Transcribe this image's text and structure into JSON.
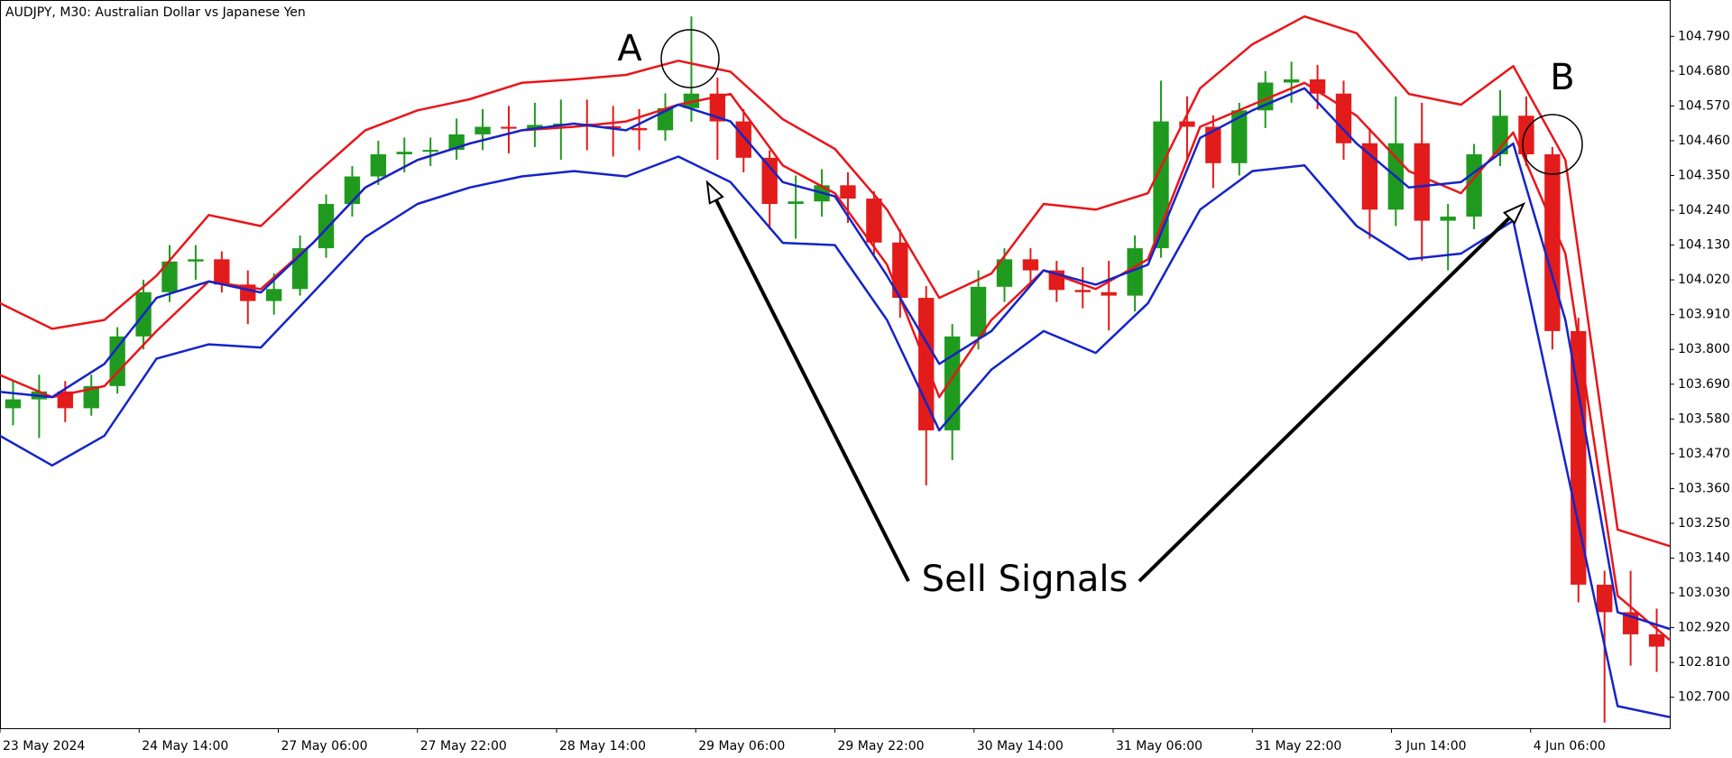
{
  "chart_data": {
    "type": "candlestick",
    "title": "AUDJPY, M30:  Australian Dollar vs Japanese Yen",
    "up_color": "#1f9a1f",
    "down_color": "#e21b1b",
    "x": [
      3,
      9,
      15,
      21,
      27,
      33,
      39,
      45,
      51,
      57,
      63,
      69,
      75,
      81,
      87,
      93,
      99,
      105,
      111,
      117,
      123,
      129,
      135,
      141,
      147,
      153,
      159,
      165,
      171,
      177,
      183,
      189,
      195,
      201,
      207,
      213,
      219,
      225,
      231,
      237,
      243,
      249,
      255,
      261,
      267,
      273,
      279,
      285,
      291,
      297,
      303,
      309,
      315,
      321,
      327,
      333,
      339,
      345,
      351,
      357,
      363,
      369,
      375,
      381
    ],
    "open": [
      103.614,
      103.642,
      103.667,
      103.614,
      103.684,
      103.841,
      103.981,
      104.078,
      104.085,
      104.005,
      103.953,
      103.991,
      104.12,
      104.26,
      104.347,
      104.417,
      104.425,
      104.431,
      104.48,
      104.504,
      104.498,
      104.51,
      104.514,
      104.506,
      104.5,
      104.493,
      104.563,
      104.609,
      104.521,
      104.406,
      104.26,
      104.268,
      104.319,
      104.277,
      104.138,
      103.963,
      103.544,
      103.841,
      103.998,
      104.085,
      104.05,
      103.988,
      103.981,
      103.97,
      104.12,
      104.521,
      104.504,
      104.389,
      104.556,
      104.644,
      104.654,
      104.609,
      104.452,
      104.242,
      104.452,
      104.207,
      104.22,
      104.417,
      104.539,
      104.417,
      103.858,
      103.056,
      102.969,
      102.899
    ],
    "high": [
      103.7,
      103.72,
      103.7,
      103.72,
      103.87,
      104.02,
      104.13,
      104.13,
      104.11,
      104.05,
      104.04,
      104.16,
      104.29,
      104.38,
      104.46,
      104.47,
      104.47,
      104.53,
      104.56,
      104.57,
      104.58,
      104.59,
      104.59,
      104.57,
      104.56,
      104.61,
      104.853,
      104.66,
      104.56,
      104.43,
      104.35,
      104.37,
      104.36,
      104.3,
      104.18,
      104.0,
      103.88,
      104.05,
      104.12,
      104.12,
      104.08,
      104.06,
      104.08,
      104.16,
      104.65,
      104.6,
      104.54,
      104.58,
      104.68,
      104.71,
      104.7,
      104.65,
      104.5,
      104.6,
      104.58,
      104.26,
      104.45,
      104.62,
      104.6,
      104.44,
      103.9,
      103.1,
      103.1,
      102.98
    ],
    "low": [
      103.56,
      103.52,
      103.57,
      103.59,
      103.66,
      103.8,
      103.95,
      104.02,
      103.98,
      103.88,
      103.91,
      103.97,
      104.09,
      104.22,
      104.32,
      104.36,
      104.38,
      104.4,
      104.43,
      104.42,
      104.44,
      104.4,
      104.43,
      104.41,
      104.43,
      104.46,
      104.52,
      104.4,
      104.36,
      104.18,
      104.15,
      104.22,
      104.2,
      104.1,
      103.9,
      103.37,
      103.45,
      103.8,
      103.95,
      104.0,
      103.95,
      103.93,
      103.86,
      103.92,
      104.09,
      104.4,
      104.31,
      104.35,
      104.5,
      104.58,
      104.56,
      104.4,
      104.15,
      104.19,
      104.08,
      104.05,
      104.18,
      104.38,
      104.38,
      103.8,
      103.0,
      102.62,
      102.8,
      102.78
    ],
    "close": [
      103.642,
      103.667,
      103.614,
      103.684,
      103.841,
      103.981,
      104.078,
      104.085,
      104.005,
      103.953,
      103.991,
      104.12,
      104.26,
      104.347,
      104.417,
      104.425,
      104.431,
      104.48,
      104.504,
      104.498,
      104.51,
      104.514,
      104.506,
      104.5,
      104.493,
      104.563,
      104.609,
      104.521,
      104.406,
      104.26,
      104.268,
      104.319,
      104.277,
      104.138,
      103.963,
      103.544,
      103.841,
      103.998,
      104.085,
      104.05,
      103.988,
      103.981,
      103.97,
      104.12,
      104.521,
      104.504,
      104.389,
      104.556,
      104.644,
      104.654,
      104.609,
      104.452,
      104.242,
      104.452,
      104.207,
      104.22,
      104.417,
      104.539,
      104.417,
      103.858,
      103.056,
      102.969,
      102.899,
      102.86
    ],
    "lines": {
      "x": [
        0,
        12,
        24,
        36,
        48,
        60,
        72,
        84,
        96,
        108,
        120,
        132,
        144,
        156,
        168,
        180,
        192,
        204,
        216,
        228,
        240,
        252,
        264,
        276,
        288,
        300,
        312,
        324,
        336,
        348,
        360,
        372,
        384
      ],
      "series": [
        {
          "color": "#e8161a",
          "values": [
            103.946,
            103.865,
            103.893,
            104.033,
            104.225,
            104.19,
            104.347,
            104.493,
            104.556,
            104.591,
            104.643,
            104.654,
            104.668,
            104.713,
            104.678,
            104.528,
            104.434,
            104.242,
            103.963,
            104.04,
            104.26,
            104.242,
            104.294,
            104.626,
            104.765,
            104.853,
            104.8,
            104.608,
            104.574,
            104.696,
            104.399,
            103.23,
            103.178
          ]
        },
        {
          "color": "#e8161a",
          "values": [
            103.719,
            103.649,
            103.684,
            103.858,
            104.015,
            103.991,
            104.137,
            104.312,
            104.399,
            104.451,
            104.493,
            104.504,
            104.521,
            104.574,
            104.608,
            104.382,
            104.294,
            104.068,
            103.649,
            103.893,
            104.05,
            103.991,
            104.085,
            104.504,
            104.574,
            104.643,
            104.539,
            104.364,
            104.294,
            104.486,
            104.103,
            103.021,
            102.881
          ]
        },
        {
          "color": "#1424c8",
          "values": [
            103.666,
            103.649,
            103.754,
            103.963,
            104.015,
            103.98,
            104.137,
            104.312,
            104.399,
            104.451,
            104.493,
            104.514,
            104.493,
            104.574,
            104.521,
            104.329,
            104.284,
            104.033,
            103.754,
            103.858,
            104.05,
            104.005,
            104.068,
            104.469,
            104.556,
            104.626,
            104.451,
            104.312,
            104.329,
            104.451,
            103.893,
            102.969,
            102.916
          ]
        },
        {
          "color": "#1424c8",
          "values": [
            103.527,
            103.433,
            103.527,
            103.771,
            103.816,
            103.806,
            103.98,
            104.155,
            104.26,
            104.312,
            104.347,
            104.364,
            104.347,
            104.41,
            104.329,
            104.137,
            104.13,
            103.893,
            103.544,
            103.736,
            103.858,
            103.789,
            103.946,
            104.242,
            104.364,
            104.382,
            104.19,
            104.085,
            104.103,
            104.207,
            103.44,
            102.672,
            102.637
          ]
        }
      ]
    },
    "xlim": [
      0,
      384
    ],
    "ylim": [
      102.602,
      104.905
    ],
    "xticks": [
      {
        "value": 0,
        "label": "23 May 2024"
      },
      {
        "value": 32,
        "label": "24 May 14:00"
      },
      {
        "value": 64,
        "label": "27 May 06:00"
      },
      {
        "value": 96,
        "label": "27 May 22:00"
      },
      {
        "value": 128,
        "label": "28 May 14:00"
      },
      {
        "value": 160,
        "label": "29 May 06:00"
      },
      {
        "value": 192,
        "label": "29 May 22:00"
      },
      {
        "value": 224,
        "label": "30 May 14:00"
      },
      {
        "value": 256,
        "label": "31 May 06:00"
      },
      {
        "value": 288,
        "label": "31 May 22:00"
      },
      {
        "value": 320,
        "label": "3 Jun 14:00"
      },
      {
        "value": 352,
        "label": "4 Jun 06:00"
      }
    ],
    "yticks": [
      {
        "value": 104.79,
        "label": "104.790"
      },
      {
        "value": 104.68,
        "label": "104.680"
      },
      {
        "value": 104.57,
        "label": "104.570"
      },
      {
        "value": 104.46,
        "label": "104.460"
      },
      {
        "value": 104.35,
        "label": "104.350"
      },
      {
        "value": 104.24,
        "label": "104.240"
      },
      {
        "value": 104.13,
        "label": "104.130"
      },
      {
        "value": 104.02,
        "label": "104.020"
      },
      {
        "value": 103.91,
        "label": "103.910"
      },
      {
        "value": 103.8,
        "label": "103.800"
      },
      {
        "value": 103.69,
        "label": "103.690"
      },
      {
        "value": 103.58,
        "label": "103.580"
      },
      {
        "value": 103.47,
        "label": "103.470"
      },
      {
        "value": 103.36,
        "label": "103.360"
      },
      {
        "value": 103.25,
        "label": "103.250"
      },
      {
        "value": 103.14,
        "label": "103.140"
      },
      {
        "value": 103.03,
        "label": "103.030"
      },
      {
        "value": 102.92,
        "label": "102.920"
      },
      {
        "value": 102.81,
        "label": "102.810"
      },
      {
        "value": 102.7,
        "label": "102.700"
      }
    ],
    "annotations": [
      {
        "text": "A"
      },
      {
        "text": "B"
      },
      {
        "text": "Sell Signals"
      }
    ]
  }
}
